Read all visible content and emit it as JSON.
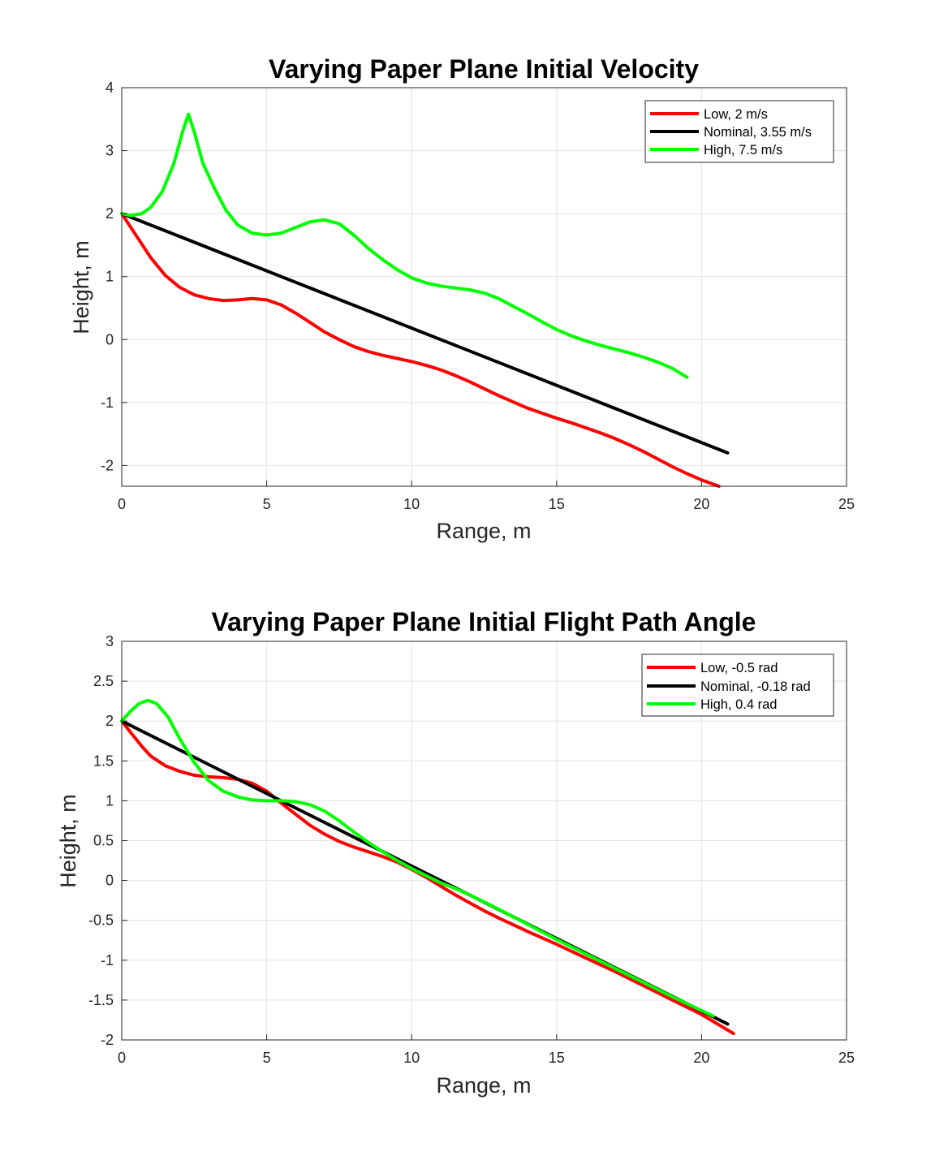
{
  "chart_data": [
    {
      "type": "line",
      "title": "Varying Paper Plane Initial Velocity",
      "xlabel": "Range, m",
      "ylabel": "Height, m",
      "xlim": [
        0,
        25
      ],
      "ylim": [
        -2.33,
        4
      ],
      "xticks": [
        0,
        5,
        10,
        15,
        20,
        25
      ],
      "yticks": [
        -2,
        -1,
        0,
        1,
        2,
        3,
        4
      ],
      "xtick_labels": [
        "0",
        "5",
        "10",
        "15",
        "20",
        "25"
      ],
      "ytick_labels": [
        "-2",
        "-1",
        "0",
        "1",
        "2",
        "3",
        "4"
      ],
      "grid": true,
      "legend_position": "top-right",
      "series": [
        {
          "name": "Low, 2 m/s",
          "color": "#ff0000",
          "points": [
            [
              0,
              2.0
            ],
            [
              0.5,
              1.65
            ],
            [
              1,
              1.3
            ],
            [
              1.5,
              1.02
            ],
            [
              2,
              0.83
            ],
            [
              2.5,
              0.71
            ],
            [
              3,
              0.65
            ],
            [
              3.5,
              0.62
            ],
            [
              4,
              0.63
            ],
            [
              4.5,
              0.65
            ],
            [
              5,
              0.63
            ],
            [
              5.5,
              0.55
            ],
            [
              6,
              0.42
            ],
            [
              6.5,
              0.27
            ],
            [
              7,
              0.12
            ],
            [
              7.5,
              0.0
            ],
            [
              8,
              -0.11
            ],
            [
              8.5,
              -0.19
            ],
            [
              9,
              -0.25
            ],
            [
              9.5,
              -0.3
            ],
            [
              10,
              -0.35
            ],
            [
              10.5,
              -0.41
            ],
            [
              11,
              -0.48
            ],
            [
              11.5,
              -0.57
            ],
            [
              12,
              -0.67
            ],
            [
              12.5,
              -0.78
            ],
            [
              13,
              -0.89
            ],
            [
              13.5,
              -0.99
            ],
            [
              14,
              -1.09
            ],
            [
              14.5,
              -1.17
            ],
            [
              15,
              -1.25
            ],
            [
              15.5,
              -1.32
            ],
            [
              16,
              -1.4
            ],
            [
              16.5,
              -1.48
            ],
            [
              17,
              -1.57
            ],
            [
              17.5,
              -1.67
            ],
            [
              18,
              -1.78
            ],
            [
              18.5,
              -1.9
            ],
            [
              19,
              -2.02
            ],
            [
              19.5,
              -2.13
            ],
            [
              20,
              -2.23
            ],
            [
              20.6,
              -2.33
            ]
          ]
        },
        {
          "name": "Nominal, 3.55 m/s",
          "color": "#000000",
          "points": [
            [
              0,
              2.0
            ],
            [
              20.9,
              -1.8
            ]
          ]
        },
        {
          "name": "High, 7.5 m/s",
          "color": "#00ff00",
          "points": [
            [
              0,
              2.0
            ],
            [
              0.3,
              1.97
            ],
            [
              0.7,
              2.0
            ],
            [
              1,
              2.1
            ],
            [
              1.4,
              2.35
            ],
            [
              1.8,
              2.8
            ],
            [
              2.1,
              3.3
            ],
            [
              2.3,
              3.58
            ],
            [
              2.5,
              3.3
            ],
            [
              2.8,
              2.8
            ],
            [
              3.2,
              2.4
            ],
            [
              3.6,
              2.05
            ],
            [
              4,
              1.82
            ],
            [
              4.5,
              1.69
            ],
            [
              5,
              1.66
            ],
            [
              5.5,
              1.69
            ],
            [
              6,
              1.78
            ],
            [
              6.5,
              1.87
            ],
            [
              7,
              1.9
            ],
            [
              7.5,
              1.84
            ],
            [
              8,
              1.66
            ],
            [
              8.5,
              1.45
            ],
            [
              9,
              1.27
            ],
            [
              9.5,
              1.11
            ],
            [
              10,
              0.98
            ],
            [
              10.5,
              0.9
            ],
            [
              11,
              0.85
            ],
            [
              11.5,
              0.82
            ],
            [
              12,
              0.79
            ],
            [
              12.5,
              0.74
            ],
            [
              13,
              0.65
            ],
            [
              13.5,
              0.53
            ],
            [
              14,
              0.41
            ],
            [
              14.5,
              0.28
            ],
            [
              15,
              0.16
            ],
            [
              15.5,
              0.06
            ],
            [
              16,
              -0.02
            ],
            [
              16.5,
              -0.09
            ],
            [
              17,
              -0.15
            ],
            [
              17.5,
              -0.21
            ],
            [
              18,
              -0.28
            ],
            [
              18.5,
              -0.36
            ],
            [
              19,
              -0.46
            ],
            [
              19.5,
              -0.6
            ]
          ]
        }
      ]
    },
    {
      "type": "line",
      "title": "Varying Paper Plane Initial Flight Path Angle",
      "xlabel": "Range, m",
      "ylabel": "Height, m",
      "xlim": [
        0,
        25
      ],
      "ylim": [
        -2,
        3
      ],
      "xticks": [
        0,
        5,
        10,
        15,
        20,
        25
      ],
      "yticks": [
        -2,
        -1.5,
        -1,
        -0.5,
        0,
        0.5,
        1,
        1.5,
        2,
        2.5,
        3
      ],
      "xtick_labels": [
        "0",
        "5",
        "10",
        "15",
        "20",
        "25"
      ],
      "ytick_labels": [
        "-2",
        "-1.5",
        "-1",
        "-0.5",
        "0",
        "0.5",
        "1",
        "1.5",
        "2",
        "2.5",
        "3"
      ],
      "grid": true,
      "legend_position": "top-right",
      "series": [
        {
          "name": "Low, -0.5 rad",
          "color": "#ff0000",
          "points": [
            [
              0,
              2.0
            ],
            [
              0.3,
              1.86
            ],
            [
              0.7,
              1.68
            ],
            [
              1,
              1.56
            ],
            [
              1.5,
              1.44
            ],
            [
              2,
              1.37
            ],
            [
              2.5,
              1.32
            ],
            [
              3,
              1.3
            ],
            [
              3.5,
              1.29
            ],
            [
              4,
              1.27
            ],
            [
              4.5,
              1.22
            ],
            [
              5,
              1.12
            ],
            [
              5.5,
              0.97
            ],
            [
              6,
              0.83
            ],
            [
              6.5,
              0.69
            ],
            [
              7,
              0.58
            ],
            [
              7.5,
              0.49
            ],
            [
              8,
              0.42
            ],
            [
              8.5,
              0.36
            ],
            [
              9,
              0.3
            ],
            [
              9.5,
              0.23
            ],
            [
              10,
              0.14
            ],
            [
              10.5,
              0.04
            ],
            [
              11,
              -0.07
            ],
            [
              11.5,
              -0.18
            ],
            [
              12,
              -0.28
            ],
            [
              12.5,
              -0.38
            ],
            [
              13,
              -0.47
            ],
            [
              14,
              -0.64
            ],
            [
              15,
              -0.8
            ],
            [
              16,
              -0.97
            ],
            [
              17,
              -1.14
            ],
            [
              18,
              -1.32
            ],
            [
              19,
              -1.5
            ],
            [
              20,
              -1.68
            ],
            [
              21.1,
              -1.92
            ]
          ]
        },
        {
          "name": "Nominal, -0.18 rad",
          "color": "#000000",
          "points": [
            [
              0,
              2.0
            ],
            [
              20.9,
              -1.8
            ]
          ]
        },
        {
          "name": "High, 0.4 rad",
          "color": "#00ff00",
          "points": [
            [
              0,
              2.0
            ],
            [
              0.3,
              2.12
            ],
            [
              0.6,
              2.22
            ],
            [
              0.9,
              2.26
            ],
            [
              1.2,
              2.22
            ],
            [
              1.6,
              2.05
            ],
            [
              2,
              1.78
            ],
            [
              2.5,
              1.48
            ],
            [
              3,
              1.25
            ],
            [
              3.5,
              1.12
            ],
            [
              4,
              1.05
            ],
            [
              4.5,
              1.01
            ],
            [
              5,
              1.0
            ],
            [
              5.5,
              1.0
            ],
            [
              6,
              0.99
            ],
            [
              6.5,
              0.95
            ],
            [
              7,
              0.87
            ],
            [
              7.5,
              0.75
            ],
            [
              8,
              0.61
            ],
            [
              8.5,
              0.48
            ],
            [
              9,
              0.36
            ],
            [
              9.5,
              0.25
            ],
            [
              10,
              0.15
            ],
            [
              10.5,
              0.06
            ],
            [
              11,
              -0.03
            ],
            [
              11.5,
              -0.1
            ],
            [
              12,
              -0.18
            ],
            [
              12.5,
              -0.27
            ],
            [
              13,
              -0.36
            ],
            [
              14,
              -0.55
            ],
            [
              15,
              -0.74
            ],
            [
              16,
              -0.92
            ],
            [
              17,
              -1.1
            ],
            [
              18,
              -1.28
            ],
            [
              19,
              -1.46
            ],
            [
              20.4,
              -1.7
            ]
          ]
        }
      ]
    }
  ]
}
